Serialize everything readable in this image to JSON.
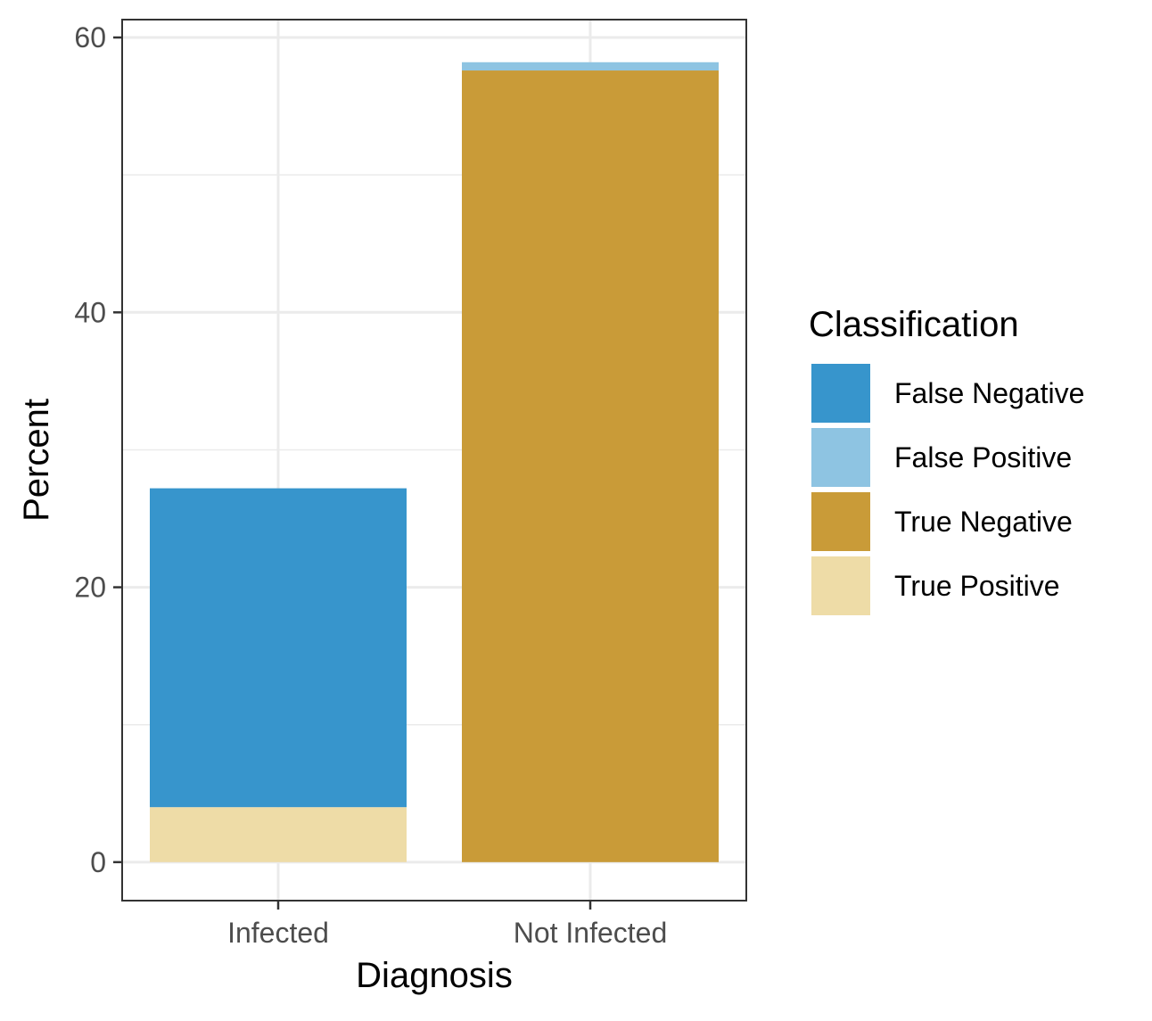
{
  "chart_data": {
    "type": "bar",
    "stacked": true,
    "categories": [
      "Infected",
      "Not Infected"
    ],
    "series": [
      {
        "name": "False Negative",
        "color": "#3795CC",
        "values": [
          23.2,
          0
        ]
      },
      {
        "name": "False Positive",
        "color": "#8EC4E2",
        "values": [
          0,
          0.6
        ]
      },
      {
        "name": "True Negative",
        "color": "#C99B38",
        "values": [
          0,
          57.6
        ]
      },
      {
        "name": "True Positive",
        "color": "#EEDCA7",
        "values": [
          4.0,
          0
        ]
      }
    ],
    "stack_order_bottom_to_top": [
      "True Positive",
      "True Negative",
      "False Positive",
      "False Negative"
    ],
    "xlabel": "Diagnosis",
    "ylabel": "Percent",
    "ylim": [
      -2.8,
      61.3
    ],
    "yticks": [
      0,
      20,
      40,
      60
    ],
    "grid": true,
    "legend": {
      "title": "Classification",
      "position": "right"
    }
  }
}
